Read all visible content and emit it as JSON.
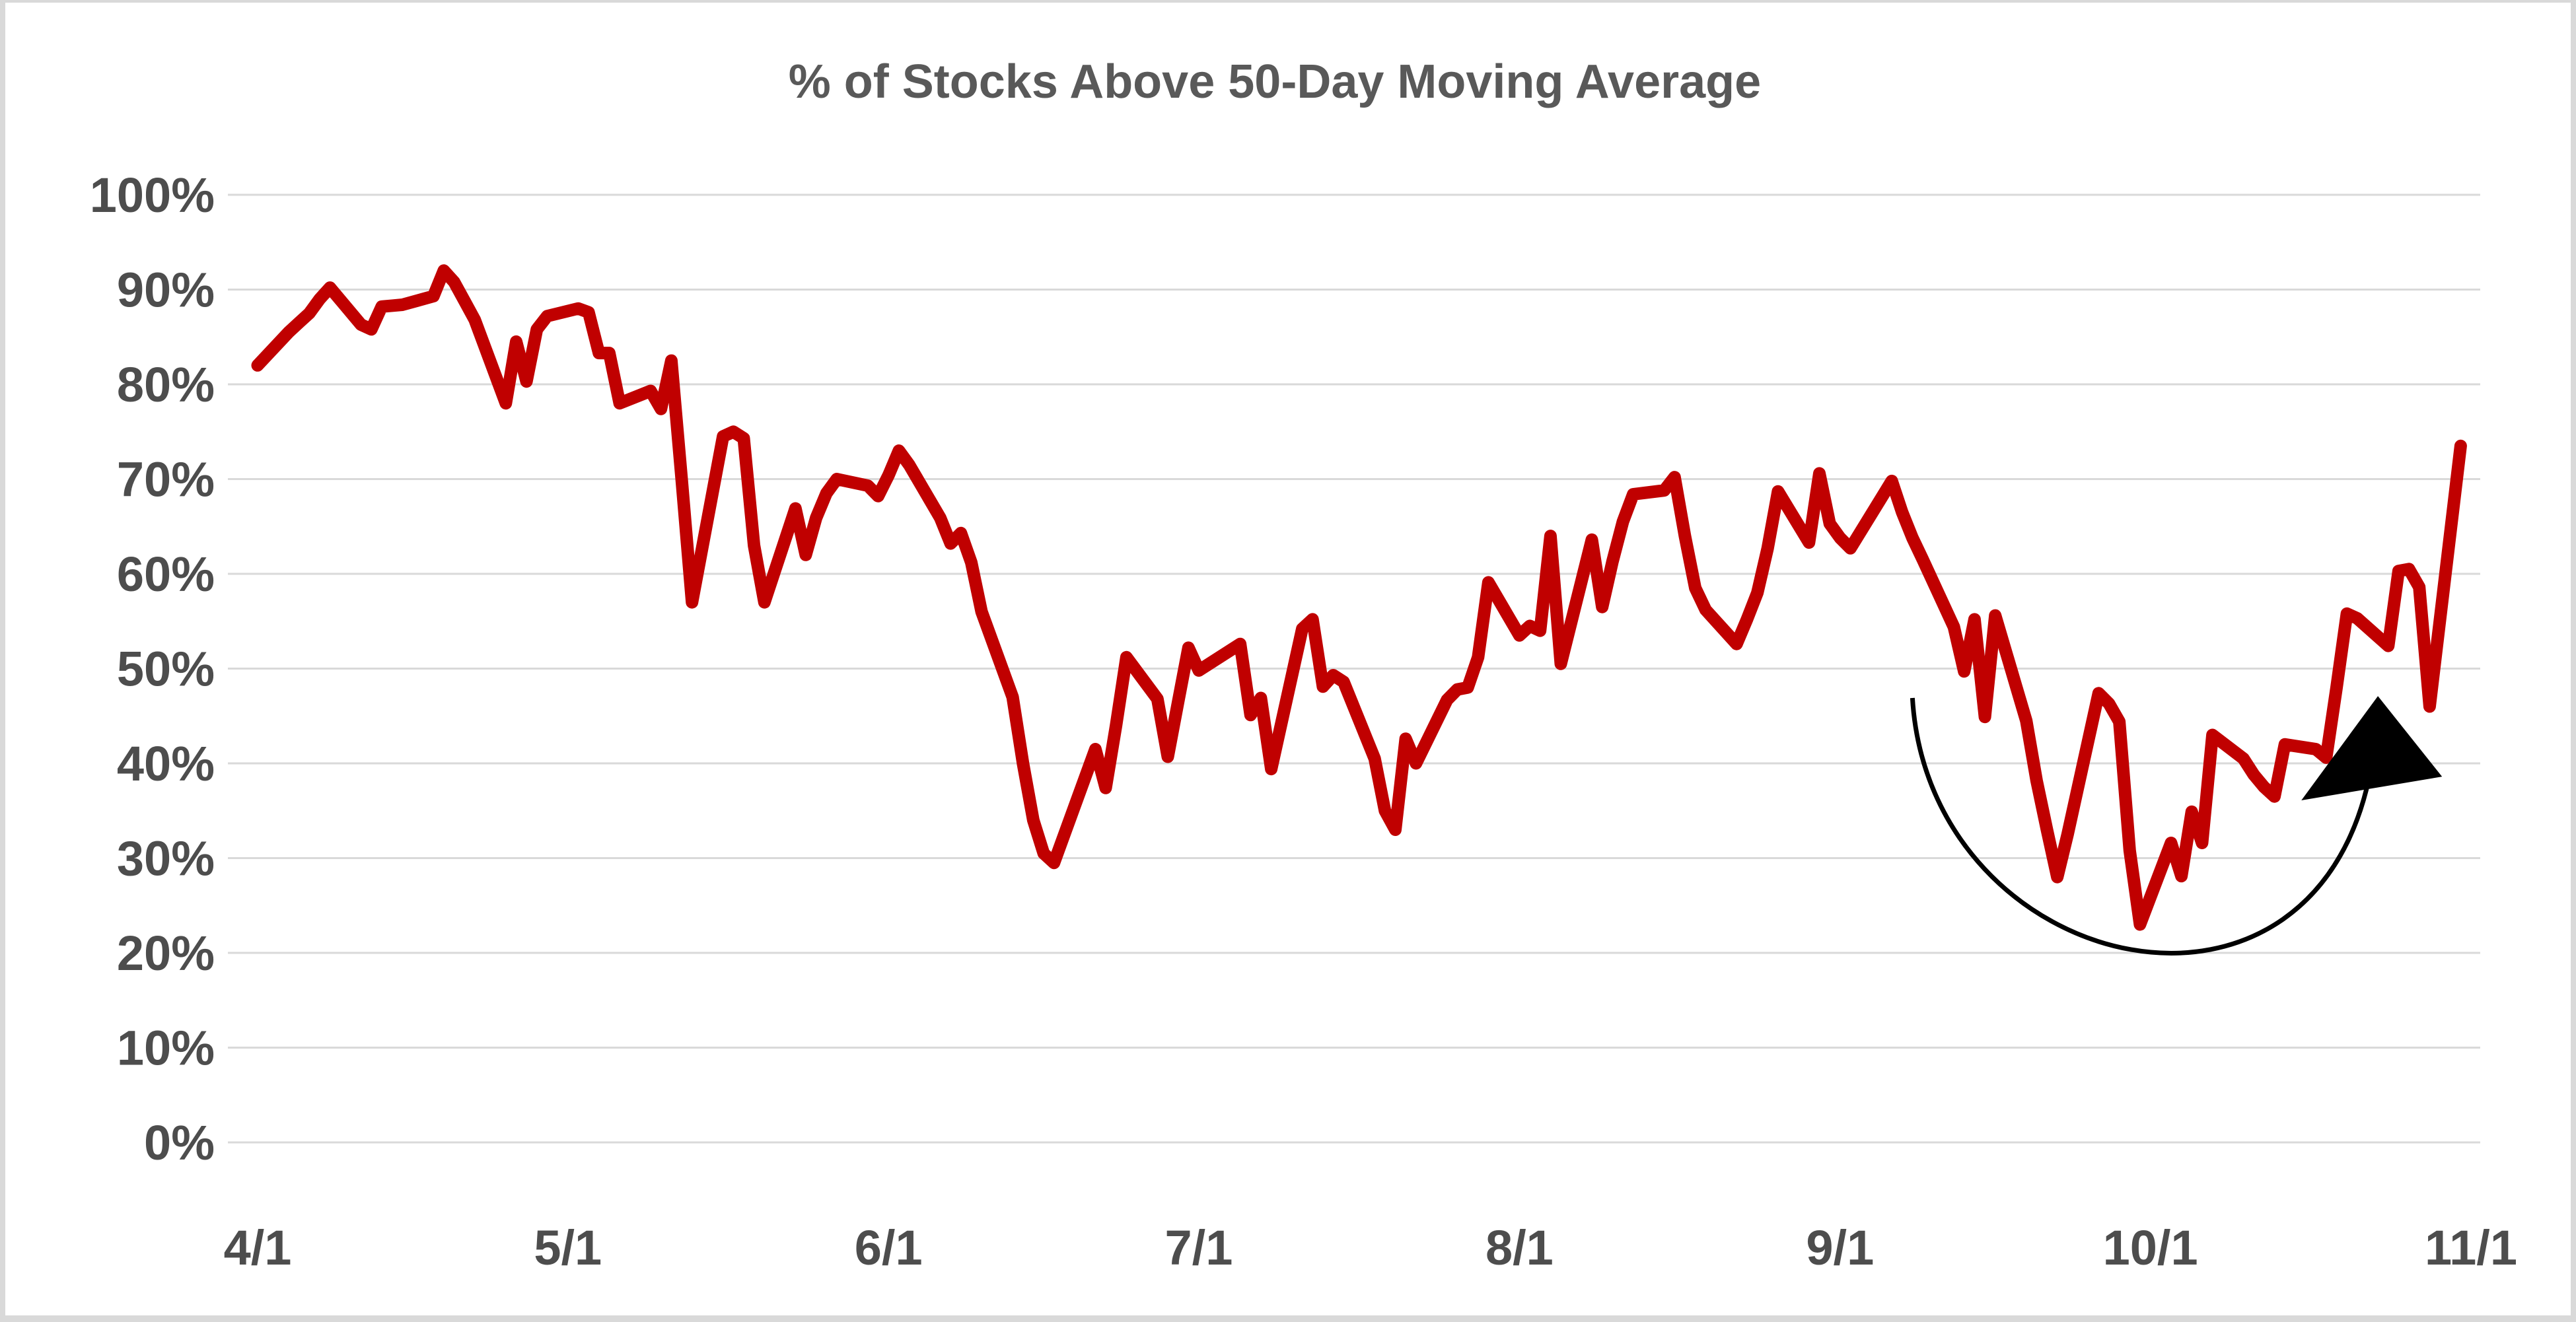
{
  "chart_data": {
    "type": "line",
    "title": "% of Stocks Above 50-Day Moving Average",
    "xlabel": "",
    "ylabel": "",
    "grid": true,
    "legend": false,
    "ylim": [
      0,
      100
    ],
    "y_tick_step": 10,
    "y_tick_labels": [
      "0%",
      "10%",
      "20%",
      "30%",
      "40%",
      "50%",
      "60%",
      "70%",
      "80%",
      "90%",
      "100%"
    ],
    "x_tick_labels": [
      "4/1",
      "5/1",
      "6/1",
      "7/1",
      "8/1",
      "9/1",
      "10/1",
      "11/1"
    ],
    "x_tick_day_offsets": [
      0,
      30,
      61,
      91,
      122,
      153,
      183,
      214
    ],
    "xlim_day_offsets": [
      0,
      215
    ],
    "colors": {
      "line": "#C00000",
      "gridline": "#D9D9D9",
      "title_text": "#595959",
      "tick_text": "#4d4d4d",
      "annotation": "#000000",
      "background": "#FFFFFF",
      "frame": "#D9D9D9"
    },
    "series": [
      {
        "name": "% of stocks above 50-day moving average",
        "color": "#C00000",
        "points": [
          [
            0,
            82,
            "4/1"
          ],
          [
            3,
            85.5,
            "4/4"
          ],
          [
            4,
            86.5,
            "4/5"
          ],
          [
            5,
            87.5,
            "4/6"
          ],
          [
            6,
            89,
            "4/7"
          ],
          [
            7,
            90.2,
            "4/8"
          ],
          [
            10,
            86.3,
            "4/11"
          ],
          [
            11,
            85.8,
            "4/12"
          ],
          [
            12,
            88.2,
            "4/13"
          ],
          [
            13,
            88.3,
            "4/14"
          ],
          [
            14,
            88.4,
            "4/15"
          ],
          [
            17,
            89.3,
            "4/18"
          ],
          [
            18,
            92,
            "4/19"
          ],
          [
            19,
            90.8,
            "4/20"
          ],
          [
            20,
            88.8,
            "4/21"
          ],
          [
            21,
            86.8,
            "4/22"
          ],
          [
            24,
            78,
            "4/25"
          ],
          [
            25,
            84.5,
            "4/26"
          ],
          [
            26,
            80.3,
            "4/27"
          ],
          [
            27,
            85.8,
            "4/28"
          ],
          [
            28,
            87.2,
            "4/29"
          ],
          [
            31,
            88,
            "5/2"
          ],
          [
            32,
            87.6,
            "5/3"
          ],
          [
            33,
            83.3,
            "5/4"
          ],
          [
            34,
            83.3,
            "5/5"
          ],
          [
            35,
            78,
            "5/6"
          ],
          [
            38,
            79.3,
            "5/9"
          ],
          [
            39,
            77.4,
            "5/10"
          ],
          [
            40,
            82.5,
            "5/11"
          ],
          [
            41,
            70,
            "5/12"
          ],
          [
            42,
            57,
            "5/13"
          ],
          [
            45,
            74.5,
            "5/16"
          ],
          [
            46,
            75,
            "5/17"
          ],
          [
            47,
            74.3,
            "5/18"
          ],
          [
            48,
            63,
            "5/19"
          ],
          [
            49,
            57,
            "5/20"
          ],
          [
            52,
            66.9,
            "5/23"
          ],
          [
            53,
            62,
            "5/24"
          ],
          [
            54,
            65.9,
            "5/25"
          ],
          [
            55,
            68.5,
            "5/26"
          ],
          [
            56,
            70,
            "5/27"
          ],
          [
            59,
            69.3,
            "5/30"
          ],
          [
            60,
            68.2,
            "5/31"
          ],
          [
            61,
            70.4,
            "6/1"
          ],
          [
            62,
            73,
            "6/2"
          ],
          [
            63,
            71.5,
            "6/3"
          ],
          [
            66,
            65.9,
            "6/6"
          ],
          [
            67,
            63.2,
            "6/7"
          ],
          [
            68,
            64.3,
            "6/8"
          ],
          [
            69,
            61.2,
            "6/9"
          ],
          [
            70,
            56,
            "6/10"
          ],
          [
            73,
            47,
            "6/13"
          ],
          [
            74,
            40,
            "6/14"
          ],
          [
            75,
            34,
            "6/15"
          ],
          [
            76,
            30.5,
            "6/16"
          ],
          [
            77,
            29.5,
            "6/17"
          ],
          [
            81,
            41.5,
            "6/21"
          ],
          [
            82,
            37.4,
            "6/22"
          ],
          [
            83,
            44,
            "6/23"
          ],
          [
            84,
            51.2,
            "6/24"
          ],
          [
            87,
            46.8,
            "6/27"
          ],
          [
            88,
            40.7,
            "6/28"
          ],
          [
            89,
            46.5,
            "6/29"
          ],
          [
            90,
            52.2,
            "6/30"
          ],
          [
            91,
            49.8,
            "7/1"
          ],
          [
            95,
            52.6,
            "7/5"
          ],
          [
            96,
            45.1,
            "7/6"
          ],
          [
            97,
            46.9,
            "7/7"
          ],
          [
            98,
            39.4,
            "7/8"
          ],
          [
            101,
            54.2,
            "7/11"
          ],
          [
            102,
            55.2,
            "7/12"
          ],
          [
            103,
            48.1,
            "7/13"
          ],
          [
            104,
            49.3,
            "7/14"
          ],
          [
            105,
            48.6,
            "7/15"
          ],
          [
            108,
            40.5,
            "7/18"
          ],
          [
            109,
            35,
            "7/19"
          ],
          [
            110,
            33,
            "7/20"
          ],
          [
            111,
            42.6,
            "7/21"
          ],
          [
            112,
            40,
            "7/22"
          ],
          [
            115,
            46.7,
            "7/25"
          ],
          [
            116,
            47.8,
            "7/26"
          ],
          [
            117,
            48,
            "7/27"
          ],
          [
            118,
            51.2,
            "7/28"
          ],
          [
            119,
            59.1,
            "7/29"
          ],
          [
            122,
            53.5,
            "8/1"
          ],
          [
            123,
            54.5,
            "8/2"
          ],
          [
            124,
            54,
            "8/3"
          ],
          [
            125,
            64,
            "8/4"
          ],
          [
            126,
            50.5,
            "8/5"
          ],
          [
            129,
            63.6,
            "8/8"
          ],
          [
            130,
            56.5,
            "8/9"
          ],
          [
            131,
            61.3,
            "8/10"
          ],
          [
            132,
            65.5,
            "8/11"
          ],
          [
            133,
            68.4,
            "8/12"
          ],
          [
            136,
            68.8,
            "8/15"
          ],
          [
            137,
            70.2,
            "8/16"
          ],
          [
            138,
            64,
            "8/17"
          ],
          [
            139,
            58.5,
            "8/18"
          ],
          [
            140,
            56.2,
            "8/19"
          ],
          [
            143,
            52.6,
            "8/22"
          ],
          [
            144,
            55.2,
            "8/23"
          ],
          [
            145,
            58,
            "8/24"
          ],
          [
            146,
            62.7,
            "8/25"
          ],
          [
            147,
            68.7,
            "8/26"
          ],
          [
            150,
            63.3,
            "8/29"
          ],
          [
            151,
            70.6,
            "8/30"
          ],
          [
            152,
            65.3,
            "8/31"
          ],
          [
            153,
            63.8,
            "9/1"
          ],
          [
            154,
            62.7,
            "9/2"
          ],
          [
            158,
            69.8,
            "9/6"
          ],
          [
            159,
            66.5,
            "9/7"
          ],
          [
            160,
            63.8,
            "9/8"
          ],
          [
            161,
            61.5,
            "9/9"
          ],
          [
            164,
            54.4,
            "9/12"
          ],
          [
            165,
            49.7,
            "9/13"
          ],
          [
            166,
            55.2,
            "9/14"
          ],
          [
            167,
            44.9,
            "9/15"
          ],
          [
            168,
            55.6,
            "9/16"
          ],
          [
            171,
            44.5,
            "9/19"
          ],
          [
            172,
            38.2,
            "9/20"
          ],
          [
            173,
            33,
            "9/21"
          ],
          [
            174,
            28,
            "9/22"
          ],
          [
            175,
            32.5,
            "9/23"
          ],
          [
            178,
            47.4,
            "9/26"
          ],
          [
            179,
            46.3,
            "9/27"
          ],
          [
            180,
            44.4,
            "9/28"
          ],
          [
            181,
            30.8,
            "9/29"
          ],
          [
            182,
            23,
            "9/30"
          ],
          [
            185,
            31.6,
            "10/3"
          ],
          [
            186,
            28.1,
            "10/4"
          ],
          [
            187,
            34.9,
            "10/5"
          ],
          [
            188,
            31.6,
            "10/6"
          ],
          [
            189,
            43,
            "10/7"
          ],
          [
            192,
            40.5,
            "10/10"
          ],
          [
            193,
            38.8,
            "10/11"
          ],
          [
            194,
            37.5,
            "10/12"
          ],
          [
            195,
            36.5,
            "10/13"
          ],
          [
            196,
            42,
            "10/14"
          ],
          [
            199,
            41.5,
            "10/17"
          ],
          [
            200,
            40.6,
            "10/18"
          ],
          [
            201,
            48,
            "10/19"
          ],
          [
            202,
            55.8,
            "10/20"
          ],
          [
            203,
            55.3,
            "10/21"
          ],
          [
            206,
            52.4,
            "10/24"
          ],
          [
            207,
            60.3,
            "10/25"
          ],
          [
            208,
            60.5,
            "10/26"
          ],
          [
            209,
            58.6,
            "10/27"
          ],
          [
            210,
            46,
            "10/28"
          ],
          [
            213,
            73.5,
            "10/31"
          ]
        ]
      }
    ],
    "annotation": {
      "shape": "curved-up-arrow",
      "description": "hand-drawn arc cupping the September-October low, ending in a bold arrowhead pointing up",
      "color": "#000000",
      "arc": {
        "start": {
          "t": 160.0,
          "v": 46.9
        },
        "c1": {
          "t": 161.6,
          "v": 17.4
        },
        "c2": {
          "t": 199.9,
          "v": 7.7
        },
        "end": {
          "t": 204.5,
          "v": 40.6
        }
      },
      "arrowhead": [
        {
          "t": 205.0,
          "v": 47.1
        },
        {
          "t": 197.6,
          "v": 36.1
        },
        {
          "t": 211.2,
          "v": 38.6
        }
      ]
    }
  }
}
